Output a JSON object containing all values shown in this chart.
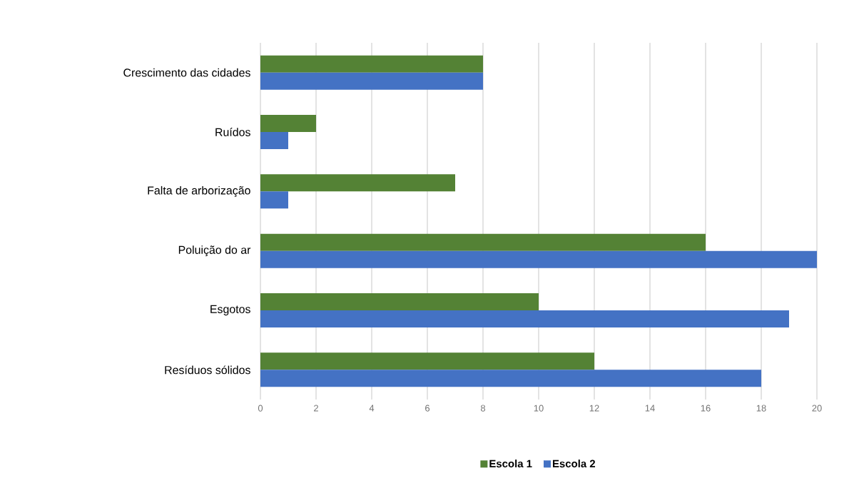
{
  "chart_data": {
    "type": "bar",
    "orientation": "horizontal",
    "categories": [
      "Crescimento das cidades",
      "Ruídos",
      "Falta de arborização",
      "Poluição do ar",
      "Esgotos",
      "Resíduos sólidos"
    ],
    "series": [
      {
        "name": "Escola 1",
        "color": "#548235",
        "values": [
          8,
          2,
          7,
          16,
          10,
          12
        ]
      },
      {
        "name": "Escola 2",
        "color": "#4472c4",
        "values": [
          8,
          1,
          1,
          20,
          19,
          18
        ]
      }
    ],
    "xlim": [
      0,
      20
    ],
    "xticks": [
      0,
      2,
      4,
      6,
      8,
      10,
      12,
      14,
      16,
      18,
      20
    ],
    "grid": "x",
    "legend": "bottom"
  }
}
